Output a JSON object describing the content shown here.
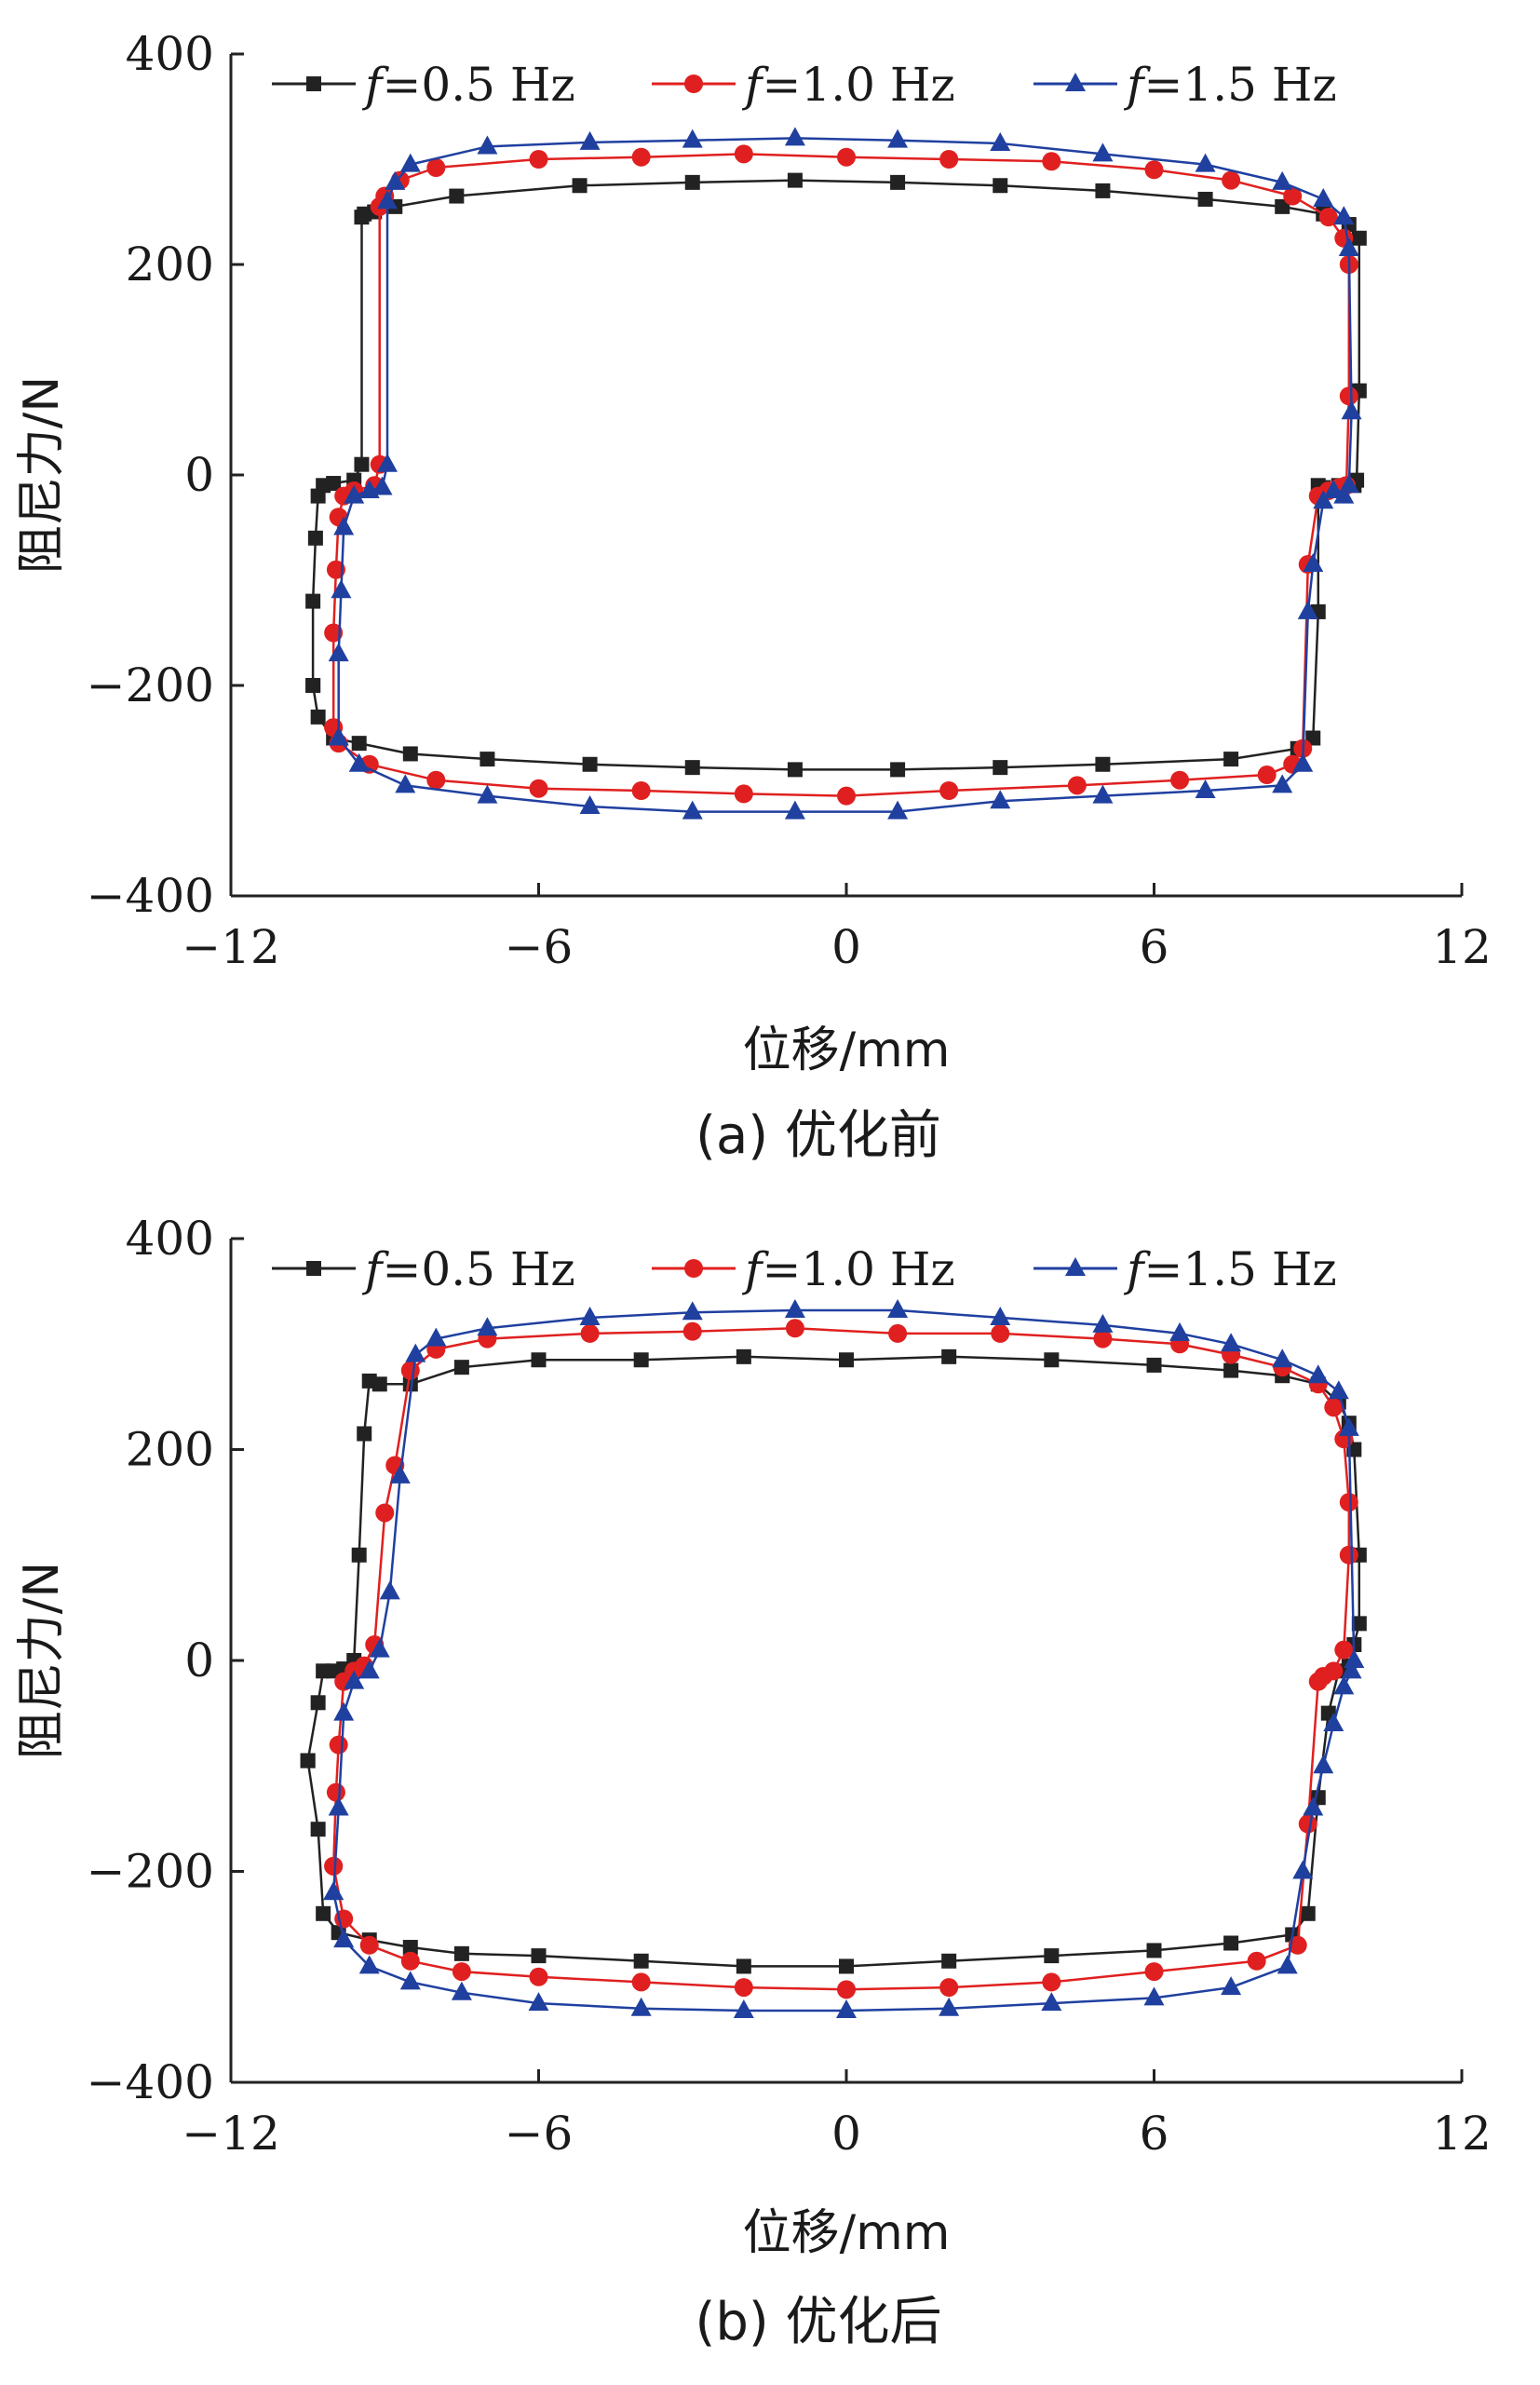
{
  "chart_data": [
    {
      "type": "line",
      "caption": "(a)  优化前",
      "xlabel": "位移/mm",
      "ylabel": "阻尼力/N",
      "xlim": [
        -12,
        12
      ],
      "ylim": [
        -400,
        400
      ],
      "xticks": [
        -12,
        -6,
        0,
        6,
        12
      ],
      "yticks": [
        -400,
        -200,
        0,
        200,
        400
      ],
      "xtick_labels": [
        "−12",
        "−6",
        "0",
        "6",
        "12"
      ],
      "ytick_labels": [
        "−400",
        "−200",
        "0",
        "200",
        "400"
      ],
      "legend": {
        "position": "top",
        "prefix": "f",
        "entries": [
          "=0.5 Hz",
          "=1.0 Hz",
          "=1.5 Hz"
        ]
      },
      "series": [
        {
          "name": "f=0.5 Hz",
          "color": "#222222",
          "marker": "square",
          "x": [
            -10.4,
            -10.4,
            -10.35,
            -10.3,
            -10.2,
            -10.0,
            -9.6,
            -9.45,
            -9.45,
            -9.4,
            -9.2,
            -8.8,
            -7.6,
            -5.2,
            -3.0,
            -1.0,
            1.0,
            3.0,
            5.0,
            7.0,
            8.5,
            9.3,
            9.8,
            10.0,
            10.0,
            9.95,
            9.9,
            9.6,
            9.3,
            9.2,
            9.2,
            9.1,
            8.8,
            7.5,
            5.0,
            3.0,
            1.0,
            -1.0,
            -3.0,
            -5.0,
            -7.0,
            -8.5,
            -9.5,
            -10.0,
            -10.3,
            -10.4
          ],
          "y": [
            -200,
            -120,
            -60,
            -20,
            -10,
            -8,
            -5,
            10,
            245,
            248,
            250,
            255,
            265,
            275,
            278,
            280,
            278,
            275,
            270,
            262,
            255,
            248,
            238,
            225,
            80,
            -5,
            -10,
            -10,
            -12,
            -10,
            -130,
            -250,
            -260,
            -270,
            -275,
            -278,
            -280,
            -280,
            -278,
            -275,
            -270,
            -265,
            -255,
            -250,
            -230,
            -200
          ]
        },
        {
          "name": "f=1.0 Hz",
          "color": "#e02020",
          "marker": "circle",
          "x": [
            -10.0,
            -10.0,
            -9.95,
            -9.9,
            -9.8,
            -9.6,
            -9.2,
            -9.1,
            -9.1,
            -9.0,
            -8.7,
            -8.0,
            -6.0,
            -4.0,
            -2.0,
            0.0,
            2.0,
            4.0,
            6.0,
            7.5,
            8.7,
            9.4,
            9.7,
            9.8,
            9.8,
            9.75,
            9.6,
            9.4,
            9.2,
            9.0,
            8.9,
            8.7,
            8.2,
            6.5,
            4.5,
            2.0,
            0.0,
            -2.0,
            -4.0,
            -6.0,
            -8.0,
            -9.3,
            -9.9,
            -10.0
          ],
          "y": [
            -240,
            -150,
            -90,
            -40,
            -20,
            -15,
            -10,
            10,
            255,
            265,
            280,
            292,
            300,
            302,
            305,
            302,
            300,
            298,
            290,
            280,
            265,
            245,
            225,
            200,
            75,
            -10,
            -12,
            -15,
            -20,
            -85,
            -260,
            -275,
            -285,
            -290,
            -295,
            -300,
            -305,
            -303,
            -300,
            -298,
            -290,
            -275,
            -255,
            -240
          ]
        },
        {
          "name": "f=1.5 Hz",
          "color": "#2040a0",
          "marker": "triangle",
          "x": [
            -9.9,
            -9.9,
            -9.85,
            -9.8,
            -9.6,
            -9.3,
            -9.05,
            -8.95,
            -8.95,
            -8.8,
            -8.5,
            -7.0,
            -5.0,
            -3.0,
            -1.0,
            1.0,
            3.0,
            5.0,
            7.0,
            8.5,
            9.3,
            9.7,
            9.8,
            9.85,
            9.8,
            9.7,
            9.5,
            9.3,
            9.1,
            9.0,
            8.9,
            8.5,
            7.0,
            5.0,
            3.0,
            1.0,
            -1.0,
            -3.0,
            -5.0,
            -7.0,
            -8.6,
            -9.5,
            -9.9
          ],
          "y": [
            -250,
            -170,
            -110,
            -50,
            -20,
            -15,
            -12,
            10,
            260,
            278,
            295,
            312,
            316,
            318,
            320,
            318,
            315,
            305,
            295,
            278,
            262,
            245,
            215,
            60,
            -10,
            -20,
            -15,
            -25,
            -85,
            -130,
            -275,
            -295,
            -300,
            -305,
            -310,
            -320,
            -320,
            -320,
            -315,
            -305,
            -295,
            -275,
            -250
          ]
        }
      ]
    },
    {
      "type": "line",
      "caption": "(b)  优化后",
      "xlabel": "位移/mm",
      "ylabel": "阻尼力/N",
      "xlim": [
        -12,
        12
      ],
      "ylim": [
        -400,
        400
      ],
      "xticks": [
        -12,
        -6,
        0,
        6,
        12
      ],
      "yticks": [
        -400,
        -200,
        0,
        200,
        400
      ],
      "xtick_labels": [
        "−12",
        "−6",
        "0",
        "6",
        "12"
      ],
      "ytick_labels": [
        "−400",
        "−200",
        "0",
        "200",
        "400"
      ],
      "legend": {
        "position": "top",
        "prefix": "f",
        "entries": [
          "=0.5 Hz",
          "=1.0 Hz",
          "=1.5 Hz"
        ]
      },
      "series": [
        {
          "name": "f=0.5 Hz",
          "color": "#222222",
          "marker": "square",
          "x": [
            -10.5,
            -10.3,
            -10.2,
            -10.0,
            -9.8,
            -9.6,
            -9.5,
            -9.4,
            -9.3,
            -9.1,
            -8.5,
            -7.5,
            -6.0,
            -4.0,
            -2.0,
            0.0,
            2.0,
            4.0,
            6.0,
            7.5,
            8.5,
            9.2,
            9.6,
            9.8,
            9.9,
            10.0,
            10.0,
            9.9,
            9.8,
            9.6,
            9.4,
            9.2,
            9.0,
            8.7,
            7.5,
            6.0,
            4.0,
            2.0,
            0.0,
            -2.0,
            -4.0,
            -6.0,
            -7.5,
            -8.5,
            -9.3,
            -9.9,
            -10.2,
            -10.3,
            -10.5
          ],
          "y": [
            -95,
            -40,
            -10,
            -10,
            -8,
            0,
            100,
            215,
            265,
            262,
            262,
            278,
            285,
            285,
            288,
            285,
            288,
            285,
            280,
            275,
            270,
            262,
            245,
            225,
            200,
            100,
            35,
            15,
            -5,
            -10,
            -50,
            -130,
            -240,
            -260,
            -268,
            -275,
            -280,
            -285,
            -290,
            -290,
            -285,
            -280,
            -278,
            -272,
            -265,
            -258,
            -240,
            -160,
            -95
          ]
        },
        {
          "name": "f=1.0 Hz",
          "color": "#e02020",
          "marker": "circle",
          "x": [
            -10.0,
            -9.95,
            -9.9,
            -9.8,
            -9.6,
            -9.4,
            -9.2,
            -9.0,
            -8.8,
            -8.5,
            -8.0,
            -7.0,
            -5.0,
            -3.0,
            -1.0,
            1.0,
            3.0,
            5.0,
            6.5,
            7.5,
            8.5,
            9.2,
            9.5,
            9.7,
            9.8,
            9.8,
            9.7,
            9.5,
            9.3,
            9.2,
            9.0,
            8.8,
            8.0,
            6.0,
            4.0,
            2.0,
            0.0,
            -2.0,
            -4.0,
            -6.0,
            -7.5,
            -8.5,
            -9.3,
            -9.8,
            -10.0
          ],
          "y": [
            -195,
            -125,
            -80,
            -20,
            -10,
            -5,
            15,
            140,
            185,
            275,
            295,
            305,
            310,
            312,
            315,
            310,
            310,
            305,
            300,
            290,
            278,
            262,
            240,
            210,
            150,
            100,
            10,
            -10,
            -15,
            -20,
            -155,
            -270,
            -285,
            -295,
            -305,
            -310,
            -312,
            -310,
            -305,
            -300,
            -295,
            -285,
            -270,
            -245,
            -195
          ]
        },
        {
          "name": "f=1.5 Hz",
          "color": "#2040a0",
          "marker": "triangle",
          "x": [
            -10.0,
            -9.9,
            -9.8,
            -9.6,
            -9.3,
            -9.1,
            -8.9,
            -8.7,
            -8.4,
            -8.0,
            -7.0,
            -5.0,
            -3.0,
            -1.0,
            1.0,
            3.0,
            5.0,
            6.5,
            7.5,
            8.5,
            9.2,
            9.6,
            9.8,
            9.9,
            9.85,
            9.7,
            9.5,
            9.3,
            9.1,
            8.9,
            8.6,
            7.5,
            6.0,
            4.0,
            2.0,
            0.0,
            -2.0,
            -4.0,
            -6.0,
            -7.5,
            -8.5,
            -9.3,
            -9.8,
            -10.0
          ],
          "y": [
            -220,
            -140,
            -50,
            -20,
            -10,
            10,
            65,
            175,
            290,
            305,
            315,
            325,
            330,
            332,
            332,
            325,
            318,
            310,
            300,
            285,
            270,
            255,
            220,
            0,
            -10,
            -25,
            -60,
            -100,
            -140,
            -200,
            -290,
            -310,
            -320,
            -325,
            -330,
            -332,
            -332,
            -330,
            -325,
            -315,
            -305,
            -290,
            -265,
            -220
          ]
        }
      ]
    }
  ]
}
